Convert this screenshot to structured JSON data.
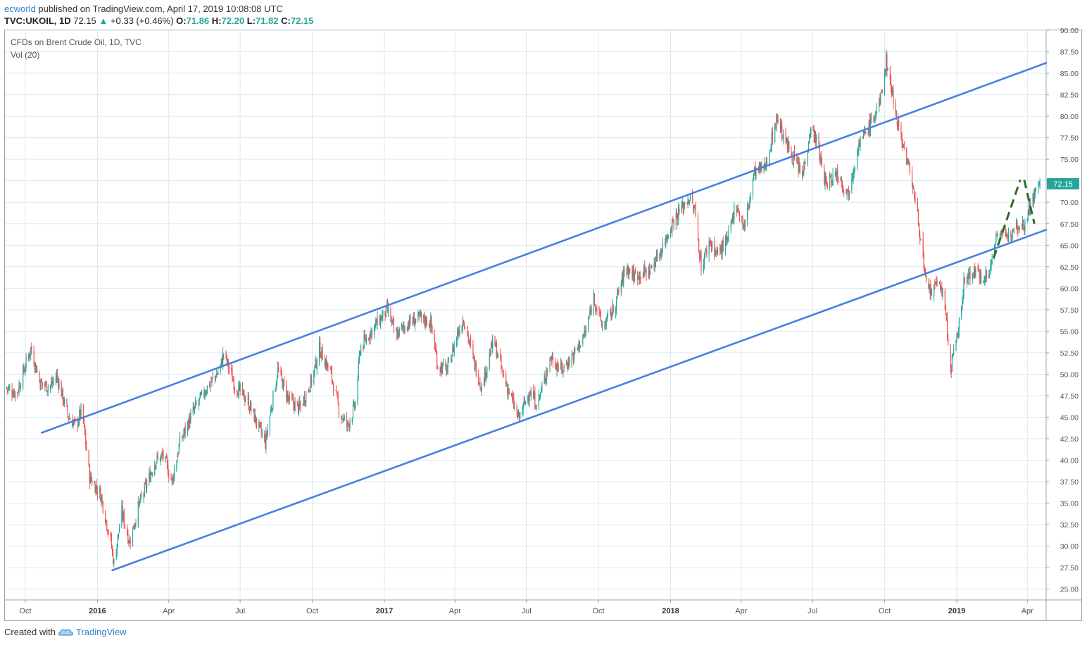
{
  "header": {
    "user": "ecworld",
    "published": "published on TradingView.com, April 17, 2019 10:08:08 UTC",
    "symbol": "TVC:UKOIL, 1D",
    "price": "72.15",
    "change_arrow": "▲",
    "change": "+0.33 (+0.46%)",
    "o_label": "O:",
    "o_value": "71.86",
    "h_label": "H:",
    "h_value": "72.20",
    "l_label": "L:",
    "l_value": "71.82",
    "c_label": "C:",
    "c_value": "72.15"
  },
  "chart_title": "CFDs on Brent Crude Oil, 1D, TVC",
  "volume_label": "Vol (20)",
  "last_price_badge": "72.15",
  "colors": {
    "up": "#26a69a",
    "down": "#ef5350",
    "channel": "#4a7fe0",
    "dashed": "#2e6b1e",
    "badge": "#26a69a",
    "grid": "#dbe8f3"
  },
  "footer": {
    "created_with": "Created with",
    "brand": "TradingView",
    "logo_icon": "tradingview-cloud-icon"
  },
  "chart_data": {
    "type": "candlestick",
    "title": "CFDs on Brent Crude Oil, 1D, TVC",
    "y_axis_position": "right",
    "ylim": [
      23.75,
      90.0
    ],
    "yticks": [
      "25.00",
      "27.50",
      "30.00",
      "32.50",
      "35.00",
      "37.50",
      "40.00",
      "42.50",
      "45.00",
      "47.50",
      "50.00",
      "52.50",
      "55.00",
      "57.50",
      "60.00",
      "62.50",
      "65.00",
      "67.50",
      "70.00",
      "72.50",
      "75.00",
      "77.50",
      "80.00",
      "82.50",
      "85.00",
      "87.50",
      "90.00"
    ],
    "xticks": [
      {
        "label": "Oct",
        "date": "2015-10-01",
        "year": false
      },
      {
        "label": "2016",
        "date": "2016-01-01",
        "year": true
      },
      {
        "label": "Apr",
        "date": "2016-04-01",
        "year": false
      },
      {
        "label": "Jul",
        "date": "2016-07-01",
        "year": false
      },
      {
        "label": "Oct",
        "date": "2016-10-01",
        "year": false
      },
      {
        "label": "2017",
        "date": "2017-01-01",
        "year": true
      },
      {
        "label": "Apr",
        "date": "2017-04-01",
        "year": false
      },
      {
        "label": "Jul",
        "date": "2017-07-01",
        "year": false
      },
      {
        "label": "Oct",
        "date": "2017-10-01",
        "year": false
      },
      {
        "label": "2018",
        "date": "2018-01-01",
        "year": true
      },
      {
        "label": "Apr",
        "date": "2018-04-01",
        "year": false
      },
      {
        "label": "Jul",
        "date": "2018-07-01",
        "year": false
      },
      {
        "label": "Oct",
        "date": "2018-10-01",
        "year": false
      },
      {
        "label": "2019",
        "date": "2019-01-01",
        "year": true
      },
      {
        "label": "Apr",
        "date": "2019-04-01",
        "year": false
      }
    ],
    "xlim": [
      "2015-09-05",
      "2019-04-25"
    ],
    "price_path": [
      [
        "2015-09-05",
        48.5
      ],
      [
        "2015-09-20",
        47.8
      ],
      [
        "2015-10-08",
        53.0
      ],
      [
        "2015-10-20",
        49.0
      ],
      [
        "2015-11-01",
        48.5
      ],
      [
        "2015-11-10",
        49.8
      ],
      [
        "2015-11-25",
        45.0
      ],
      [
        "2015-12-05",
        44.0
      ],
      [
        "2015-12-12",
        46.0
      ],
      [
        "2015-12-22",
        38.0
      ],
      [
        "2016-01-05",
        36.0
      ],
      [
        "2016-01-18",
        30.5
      ],
      [
        "2016-01-22",
        28.0
      ],
      [
        "2016-02-01",
        34.0
      ],
      [
        "2016-02-11",
        30.5
      ],
      [
        "2016-02-22",
        34.5
      ],
      [
        "2016-03-01",
        36.5
      ],
      [
        "2016-03-15",
        40.0
      ],
      [
        "2016-03-25",
        40.5
      ],
      [
        "2016-04-05",
        37.5
      ],
      [
        "2016-04-15",
        42.0
      ],
      [
        "2016-05-01",
        45.5
      ],
      [
        "2016-05-20",
        48.5
      ],
      [
        "2016-06-05",
        50.5
      ],
      [
        "2016-06-10",
        52.5
      ],
      [
        "2016-06-25",
        48.5
      ],
      [
        "2016-07-10",
        47.0
      ],
      [
        "2016-08-02",
        42.0
      ],
      [
        "2016-08-18",
        50.5
      ],
      [
        "2016-09-01",
        47.0
      ],
      [
        "2016-09-15",
        46.0
      ],
      [
        "2016-10-01",
        49.5
      ],
      [
        "2016-10-10",
        53.0
      ],
      [
        "2016-10-25",
        50.0
      ],
      [
        "2016-11-05",
        45.5
      ],
      [
        "2016-11-15",
        44.0
      ],
      [
        "2016-11-25",
        46.5
      ],
      [
        "2016-12-01",
        53.0
      ],
      [
        "2016-12-15",
        55.0
      ],
      [
        "2017-01-05",
        57.5
      ],
      [
        "2017-01-15",
        54.5
      ],
      [
        "2017-02-01",
        56.0
      ],
      [
        "2017-02-15",
        56.5
      ],
      [
        "2017-03-01",
        56.0
      ],
      [
        "2017-03-10",
        51.0
      ],
      [
        "2017-03-22",
        50.5
      ],
      [
        "2017-04-05",
        55.0
      ],
      [
        "2017-04-12",
        56.5
      ],
      [
        "2017-04-25",
        51.5
      ],
      [
        "2017-05-05",
        48.5
      ],
      [
        "2017-05-20",
        54.0
      ],
      [
        "2017-06-01",
        50.0
      ],
      [
        "2017-06-21",
        44.8
      ],
      [
        "2017-07-05",
        48.0
      ],
      [
        "2017-07-15",
        46.5
      ],
      [
        "2017-08-01",
        52.0
      ],
      [
        "2017-08-15",
        50.5
      ],
      [
        "2017-09-01",
        52.5
      ],
      [
        "2017-09-15",
        55.0
      ],
      [
        "2017-09-25",
        59.0
      ],
      [
        "2017-10-06",
        55.5
      ],
      [
        "2017-10-20",
        57.5
      ],
      [
        "2017-11-05",
        62.5
      ],
      [
        "2017-11-15",
        61.5
      ],
      [
        "2017-12-05",
        62.0
      ],
      [
        "2017-12-20",
        64.5
      ],
      [
        "2018-01-05",
        68.0
      ],
      [
        "2018-01-24",
        70.5
      ],
      [
        "2018-02-01",
        69.0
      ],
      [
        "2018-02-09",
        62.5
      ],
      [
        "2018-02-20",
        65.5
      ],
      [
        "2018-03-01",
        64.0
      ],
      [
        "2018-03-15",
        65.5
      ],
      [
        "2018-03-25",
        70.0
      ],
      [
        "2018-04-05",
        67.0
      ],
      [
        "2018-04-18",
        73.5
      ],
      [
        "2018-05-01",
        74.0
      ],
      [
        "2018-05-17",
        80.0
      ],
      [
        "2018-05-25",
        77.5
      ],
      [
        "2018-06-05",
        75.5
      ],
      [
        "2018-06-18",
        73.0
      ],
      [
        "2018-06-28",
        78.5
      ],
      [
        "2018-07-05",
        77.5
      ],
      [
        "2018-07-18",
        72.0
      ],
      [
        "2018-08-01",
        73.5
      ],
      [
        "2018-08-15",
        71.0
      ],
      [
        "2018-08-28",
        76.5
      ],
      [
        "2018-09-12",
        79.0
      ],
      [
        "2018-09-25",
        81.5
      ],
      [
        "2018-10-03",
        86.5
      ],
      [
        "2018-10-15",
        80.5
      ],
      [
        "2018-10-25",
        76.5
      ],
      [
        "2018-11-05",
        72.5
      ],
      [
        "2018-11-15",
        66.5
      ],
      [
        "2018-11-23",
        60.0
      ],
      [
        "2018-12-01",
        59.5
      ],
      [
        "2018-12-10",
        61.0
      ],
      [
        "2018-12-18",
        57.0
      ],
      [
        "2018-12-24",
        50.5
      ],
      [
        "2019-01-02",
        54.5
      ],
      [
        "2019-01-10",
        60.5
      ],
      [
        "2019-01-20",
        62.0
      ],
      [
        "2019-02-01",
        61.5
      ],
      [
        "2019-02-11",
        61.5
      ],
      [
        "2019-02-22",
        67.0
      ],
      [
        "2019-03-05",
        65.5
      ],
      [
        "2019-03-15",
        67.5
      ],
      [
        "2019-03-28",
        67.5
      ],
      [
        "2019-04-05",
        70.0
      ],
      [
        "2019-04-17",
        72.15
      ]
    ],
    "channel_lines": [
      {
        "name": "upper",
        "from": [
          "2015-10-22",
          43.2
        ],
        "to": [
          "2019-04-25",
          86.2
        ]
      },
      {
        "name": "lower",
        "from": [
          "2016-01-20",
          27.2
        ],
        "to": [
          "2019-04-25",
          66.8
        ]
      }
    ],
    "dashed_lines": [
      {
        "from": [
          "2019-02-17",
          63.5
        ],
        "to": [
          "2019-03-23",
          72.6
        ]
      },
      {
        "from": [
          "2019-03-28",
          72.6
        ],
        "to": [
          "2019-04-10",
          67.5
        ]
      }
    ],
    "last_price": 72.15
  }
}
